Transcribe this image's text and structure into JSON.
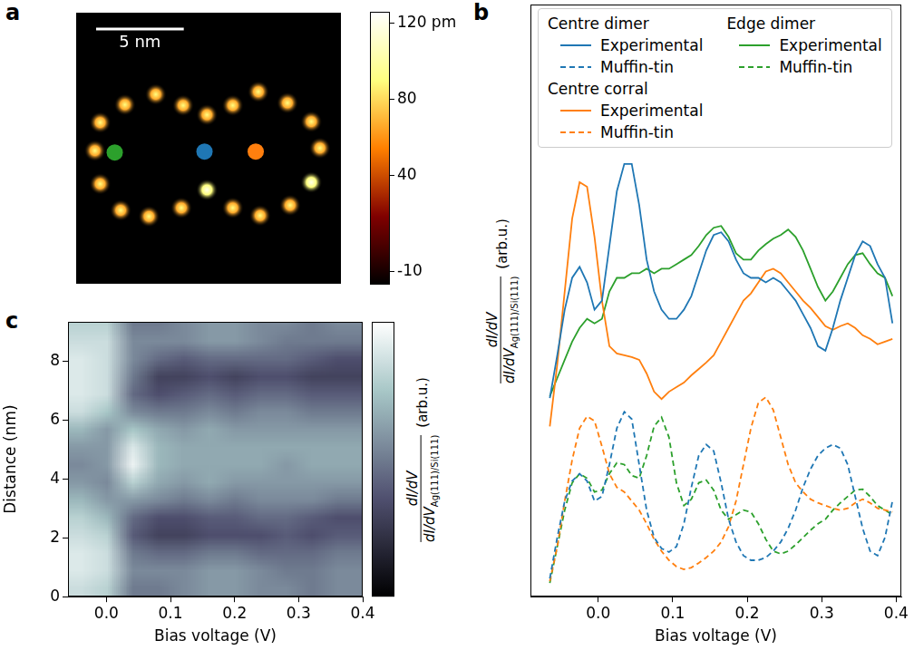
{
  "chart_data": [
    {
      "panel": "a",
      "type": "scatter",
      "xlim": [
        0,
        15.1
      ],
      "ylim": [
        0,
        15.5
      ],
      "tick_labels": false,
      "adatoms": {
        "x": [
          2.78,
          4.54,
          6.1,
          7.46,
          8.93,
          10.39,
          12.05,
          13.41,
          13.9,
          13.41,
          12.2,
          10.49,
          8.93,
          7.46,
          6.0,
          4.15,
          2.54,
          1.37,
          1.07,
          1.37
        ],
        "y": [
          10.24,
          10.83,
          10.2,
          9.66,
          10.2,
          10.98,
          10.34,
          9.27,
          7.76,
          5.8,
          4.49,
          3.9,
          4.34,
          5.37,
          4.34,
          3.85,
          4.2,
          5.71,
          7.61,
          9.22
        ],
        "height": [
          90,
          90,
          90,
          90,
          90,
          90,
          90,
          90,
          90,
          120,
          90,
          90,
          90,
          120,
          90,
          90,
          90,
          90,
          90,
          90
        ]
      },
      "markers": {
        "x": [
          2.2,
          7.32,
          10.24
        ],
        "y": [
          7.51,
          7.56,
          7.56
        ],
        "colors": [
          "#2ca02c",
          "#1f77b4",
          "#ff7f0e"
        ]
      },
      "scale_bar": {
        "length": 5,
        "label": "5 nm"
      },
      "colorbar": {
        "range": [
          -17,
          126
        ],
        "ticks": [
          {
            "value": 120,
            "label": "120 pm"
          },
          80,
          40,
          -10
        ]
      }
    },
    {
      "panel": "b",
      "type": "line",
      "x": [
        -0.065,
        -0.055,
        -0.045,
        -0.035,
        -0.025,
        -0.015,
        -0.005,
        0.005,
        0.015,
        0.025,
        0.035,
        0.045,
        0.055,
        0.065,
        0.075,
        0.085,
        0.095,
        0.105,
        0.115,
        0.125,
        0.135,
        0.145,
        0.155,
        0.165,
        0.175,
        0.185,
        0.195,
        0.205,
        0.215,
        0.225,
        0.235,
        0.245,
        0.255,
        0.265,
        0.275,
        0.285,
        0.295,
        0.305,
        0.315,
        0.325,
        0.335,
        0.345,
        0.355,
        0.365,
        0.375,
        0.385,
        0.395
      ],
      "series": [
        {
          "group": "Centre dimer",
          "name": "Experimental",
          "color": "#1f77b4",
          "line_style": "solid",
          "values": [
            2.18,
            2.65,
            3.15,
            3.5,
            3.62,
            3.45,
            3.15,
            3.25,
            3.85,
            4.45,
            4.75,
            4.75,
            4.3,
            3.7,
            3.35,
            3.15,
            3.05,
            3.05,
            3.15,
            3.3,
            3.55,
            3.8,
            3.97,
            4.0,
            3.9,
            3.7,
            3.55,
            3.5,
            3.5,
            3.45,
            3.5,
            3.45,
            3.35,
            3.25,
            3.1,
            2.95,
            2.75,
            2.7,
            2.95,
            3.25,
            3.5,
            3.75,
            3.9,
            3.85,
            3.65,
            3.5,
            3.0
          ]
        },
        {
          "group": "Centre dimer",
          "name": "Muffin-tin",
          "color": "#1f77b4",
          "line_style": "dashed",
          "values": [
            0.2,
            0.65,
            1.05,
            1.27,
            1.35,
            1.27,
            1.05,
            1.1,
            1.45,
            1.85,
            2.03,
            1.95,
            1.45,
            0.95,
            0.65,
            0.53,
            0.49,
            0.55,
            0.8,
            1.2,
            1.55,
            1.67,
            1.6,
            1.25,
            0.85,
            0.6,
            0.45,
            0.4,
            0.4,
            0.43,
            0.5,
            0.6,
            0.75,
            0.95,
            1.2,
            1.4,
            1.55,
            1.63,
            1.67,
            1.63,
            1.45,
            1.1,
            0.75,
            0.5,
            0.45,
            0.65,
            1.05
          ]
        },
        {
          "group": "Centre corral",
          "name": "Experimental",
          "color": "#ff7f0e",
          "line_style": "solid",
          "values": [
            1.87,
            2.55,
            3.35,
            4.15,
            4.55,
            4.5,
            3.95,
            3.25,
            2.75,
            2.67,
            2.65,
            2.63,
            2.6,
            2.45,
            2.25,
            2.17,
            2.25,
            2.3,
            2.35,
            2.43,
            2.5,
            2.57,
            2.65,
            2.8,
            2.95,
            3.1,
            3.25,
            3.33,
            3.45,
            3.57,
            3.6,
            3.55,
            3.45,
            3.35,
            3.25,
            3.17,
            3.07,
            2.97,
            2.93,
            2.97,
            3.0,
            2.95,
            2.87,
            2.83,
            2.77,
            2.8,
            2.83
          ]
        },
        {
          "group": "Centre corral",
          "name": "Muffin-tin",
          "color": "#ff7f0e",
          "line_style": "dashed",
          "values": [
            0.17,
            0.55,
            1.05,
            1.5,
            1.85,
            1.98,
            1.93,
            1.65,
            1.35,
            1.2,
            1.15,
            1.05,
            0.95,
            0.8,
            0.63,
            0.5,
            0.4,
            0.33,
            0.3,
            0.32,
            0.37,
            0.43,
            0.5,
            0.6,
            0.77,
            1.05,
            1.45,
            1.85,
            2.13,
            2.19,
            2.05,
            1.75,
            1.45,
            1.25,
            1.15,
            1.07,
            1.03,
            1.0,
            0.97,
            0.95,
            0.97,
            1.03,
            1.07,
            1.03,
            0.97,
            0.95,
            0.93
          ]
        },
        {
          "group": "Edge dimer",
          "name": "Experimental",
          "color": "#2ca02c",
          "line_style": "solid",
          "values": [
            2.2,
            2.4,
            2.6,
            2.8,
            2.95,
            3.05,
            3.0,
            3.05,
            3.35,
            3.5,
            3.5,
            3.55,
            3.55,
            3.6,
            3.55,
            3.6,
            3.6,
            3.65,
            3.7,
            3.75,
            3.85,
            3.97,
            4.05,
            4.07,
            3.95,
            3.77,
            3.7,
            3.7,
            3.8,
            3.87,
            3.93,
            3.97,
            4.03,
            3.95,
            3.8,
            3.6,
            3.4,
            3.25,
            3.35,
            3.5,
            3.65,
            3.75,
            3.77,
            3.65,
            3.55,
            3.5,
            3.3
          ]
        },
        {
          "group": "Edge dimer",
          "name": "Muffin-tin",
          "color": "#2ca02c",
          "line_style": "dashed",
          "values": [
            0.15,
            0.55,
            0.95,
            1.25,
            1.35,
            1.3,
            1.15,
            1.17,
            1.35,
            1.47,
            1.45,
            1.33,
            1.3,
            1.55,
            1.87,
            1.97,
            1.75,
            1.25,
            1.0,
            1.07,
            1.25,
            1.28,
            1.17,
            0.95,
            0.85,
            0.9,
            0.95,
            0.93,
            0.8,
            0.63,
            0.5,
            0.47,
            0.5,
            0.57,
            0.65,
            0.73,
            0.8,
            0.85,
            0.95,
            1.03,
            1.1,
            1.17,
            1.18,
            1.1,
            1.0,
            0.95,
            0.9
          ]
        }
      ],
      "xlim": [
        -0.091,
        0.407
      ],
      "ylim": [
        0,
        6.5
      ],
      "tick_labels": "x",
      "xticks": [
        {
          "value": 0,
          "label": "0.0"
        },
        {
          "value": 0.1,
          "label": "0.1"
        },
        {
          "value": 0.2,
          "label": "0.2"
        },
        {
          "value": 0.3,
          "label": "0.3"
        },
        {
          "value": 0.4,
          "label": "0.4"
        }
      ],
      "x_label": "Bias voltage (V)",
      "y_label": {
        "numerator": "dI/dV",
        "denominator": "dI/dV",
        "subscript": "Ag(111)/Si(111)",
        "unit": "(arb.u.)"
      },
      "legend": "top"
    },
    {
      "panel": "c",
      "type": "heatmap",
      "x": [
        -0.04,
        0.0,
        0.04,
        0.08,
        0.12,
        0.16,
        0.2,
        0.24,
        0.28,
        0.32,
        0.36,
        0.4
      ],
      "y": [
        0.3,
        0.9,
        1.5,
        2.1,
        2.7,
        3.3,
        3.9,
        4.5,
        5.1,
        5.7,
        6.3,
        6.9,
        7.5,
        8.1,
        8.7,
        9.3
      ],
      "cells": [
        [
          0.85,
          0.8,
          0.5,
          0.5,
          0.55,
          0.6,
          0.6,
          0.55,
          0.55,
          0.5,
          0.55,
          0.55
        ],
        [
          0.9,
          0.85,
          0.55,
          0.55,
          0.55,
          0.6,
          0.6,
          0.55,
          0.5,
          0.5,
          0.55,
          0.55
        ],
        [
          0.9,
          0.85,
          0.5,
          0.45,
          0.45,
          0.5,
          0.5,
          0.45,
          0.45,
          0.45,
          0.5,
          0.5
        ],
        [
          0.85,
          0.8,
          0.4,
          0.3,
          0.3,
          0.35,
          0.35,
          0.35,
          0.4,
          0.35,
          0.4,
          0.4
        ],
        [
          0.8,
          0.7,
          0.45,
          0.35,
          0.35,
          0.4,
          0.4,
          0.45,
          0.45,
          0.4,
          0.35,
          0.35
        ],
        [
          0.7,
          0.6,
          0.6,
          0.55,
          0.5,
          0.55,
          0.5,
          0.55,
          0.55,
          0.55,
          0.5,
          0.5
        ],
        [
          0.6,
          0.55,
          0.8,
          0.65,
          0.6,
          0.65,
          0.6,
          0.6,
          0.6,
          0.6,
          0.6,
          0.6
        ],
        [
          0.55,
          0.6,
          0.95,
          0.7,
          0.65,
          0.65,
          0.65,
          0.65,
          0.6,
          0.65,
          0.65,
          0.65
        ],
        [
          0.6,
          0.6,
          0.9,
          0.7,
          0.65,
          0.65,
          0.65,
          0.65,
          0.65,
          0.65,
          0.65,
          0.65
        ],
        [
          0.7,
          0.6,
          0.75,
          0.65,
          0.6,
          0.65,
          0.6,
          0.6,
          0.6,
          0.6,
          0.6,
          0.6
        ],
        [
          0.85,
          0.75,
          0.55,
          0.5,
          0.5,
          0.55,
          0.5,
          0.55,
          0.55,
          0.5,
          0.5,
          0.5
        ],
        [
          0.9,
          0.85,
          0.45,
          0.35,
          0.4,
          0.45,
          0.4,
          0.45,
          0.45,
          0.4,
          0.4,
          0.4
        ],
        [
          0.9,
          0.85,
          0.5,
          0.3,
          0.3,
          0.35,
          0.3,
          0.35,
          0.35,
          0.3,
          0.3,
          0.3
        ],
        [
          0.9,
          0.85,
          0.55,
          0.45,
          0.4,
          0.45,
          0.45,
          0.45,
          0.45,
          0.4,
          0.35,
          0.35
        ],
        [
          0.85,
          0.85,
          0.55,
          0.55,
          0.55,
          0.6,
          0.6,
          0.55,
          0.5,
          0.5,
          0.5,
          0.5
        ],
        [
          0.8,
          0.8,
          0.5,
          0.5,
          0.55,
          0.6,
          0.6,
          0.55,
          0.55,
          0.5,
          0.55,
          0.55
        ]
      ],
      "xlim": [
        -0.06,
        0.4
      ],
      "ylim": [
        0,
        9.35
      ],
      "xticks": [
        {
          "value": 0,
          "label": "0.0"
        },
        {
          "value": 0.1,
          "label": "0.1"
        },
        {
          "value": 0.2,
          "label": "0.2"
        },
        {
          "value": 0.3,
          "label": "0.3"
        },
        {
          "value": 0.4,
          "label": "0.4"
        }
      ],
      "yticks": [
        0,
        2,
        4,
        6,
        8
      ],
      "x_label": "Bias voltage (V)",
      "y_label": "Distance (nm)",
      "colorbar": {
        "range": [
          0,
          1
        ],
        "label": {
          "numerator": "dI/dV",
          "denominator": "dI/dV",
          "subscript": "Ag(111)/Si(111)",
          "unit": "(arb.u.)"
        }
      }
    }
  ]
}
